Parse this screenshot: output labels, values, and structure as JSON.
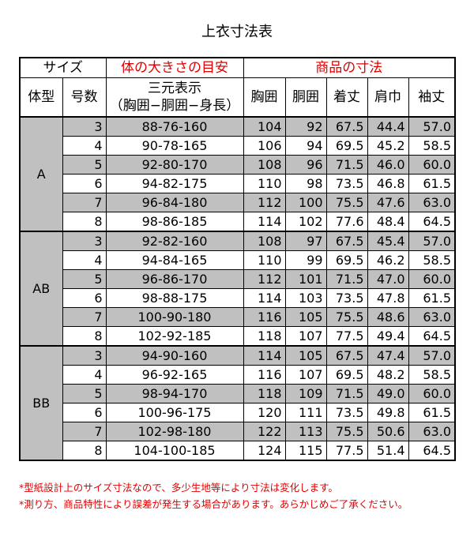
{
  "title": "上衣寸法表",
  "headers": {
    "size": "サイズ",
    "body_guide": "体の大きさの目安",
    "product_dims": "商品の寸法",
    "body_type": "体型",
    "number": "号数",
    "three_dim": "三元表示",
    "three_dim_sub": "（胸囲−胴囲−身長）",
    "chest": "胸囲",
    "waist": "胴囲",
    "length": "着丈",
    "shoulder": "肩巾",
    "sleeve": "袖丈"
  },
  "groups": [
    {
      "type": "A",
      "rows": [
        [
          "3",
          "88-76-160",
          "104",
          "92",
          "67.5",
          "44.4",
          "57.0"
        ],
        [
          "4",
          "90-78-165",
          "106",
          "94",
          "69.5",
          "45.2",
          "58.5"
        ],
        [
          "5",
          "92-80-170",
          "108",
          "96",
          "71.5",
          "46.0",
          "60.0"
        ],
        [
          "6",
          "94-82-175",
          "110",
          "98",
          "73.5",
          "46.8",
          "61.5"
        ],
        [
          "7",
          "96-84-180",
          "112",
          "100",
          "75.5",
          "47.6",
          "63.0"
        ],
        [
          "8",
          "98-86-185",
          "114",
          "102",
          "77.6",
          "48.4",
          "64.5"
        ]
      ]
    },
    {
      "type": "AB",
      "rows": [
        [
          "3",
          "92-82-160",
          "108",
          "97",
          "67.5",
          "45.4",
          "57.0"
        ],
        [
          "4",
          "94-84-165",
          "110",
          "99",
          "69.5",
          "46.2",
          "58.5"
        ],
        [
          "5",
          "96-86-170",
          "112",
          "101",
          "71.5",
          "47.0",
          "60.0"
        ],
        [
          "6",
          "98-88-175",
          "114",
          "103",
          "73.5",
          "47.8",
          "61.5"
        ],
        [
          "7",
          "100-90-180",
          "116",
          "105",
          "75.5",
          "48.6",
          "63.0"
        ],
        [
          "8",
          "102-92-185",
          "118",
          "107",
          "77.5",
          "49.4",
          "64.5"
        ]
      ]
    },
    {
      "type": "BB",
      "rows": [
        [
          "3",
          "94-90-160",
          "114",
          "105",
          "67.5",
          "47.4",
          "57.0"
        ],
        [
          "4",
          "96-92-165",
          "116",
          "107",
          "69.5",
          "48.2",
          "58.5"
        ],
        [
          "5",
          "98-94-170",
          "118",
          "109",
          "71.5",
          "49.0",
          "60.0"
        ],
        [
          "6",
          "100-96-175",
          "120",
          "111",
          "73.5",
          "49.8",
          "61.5"
        ],
        [
          "7",
          "102-98-180",
          "122",
          "113",
          "75.5",
          "50.6",
          "63.0"
        ],
        [
          "8",
          "104-100-185",
          "124",
          "115",
          "77.5",
          "51.4",
          "64.5"
        ]
      ]
    }
  ],
  "notes": [
    "*型紙設計上のサイズ寸法なので、多少生地等により寸法は変化します。",
    "*測り方、商品特性により誤差が発生する場合があります。あらかじめご了承ください。"
  ],
  "colors": {
    "accent_red": "#e00000",
    "shade": "#c0c0c0"
  }
}
